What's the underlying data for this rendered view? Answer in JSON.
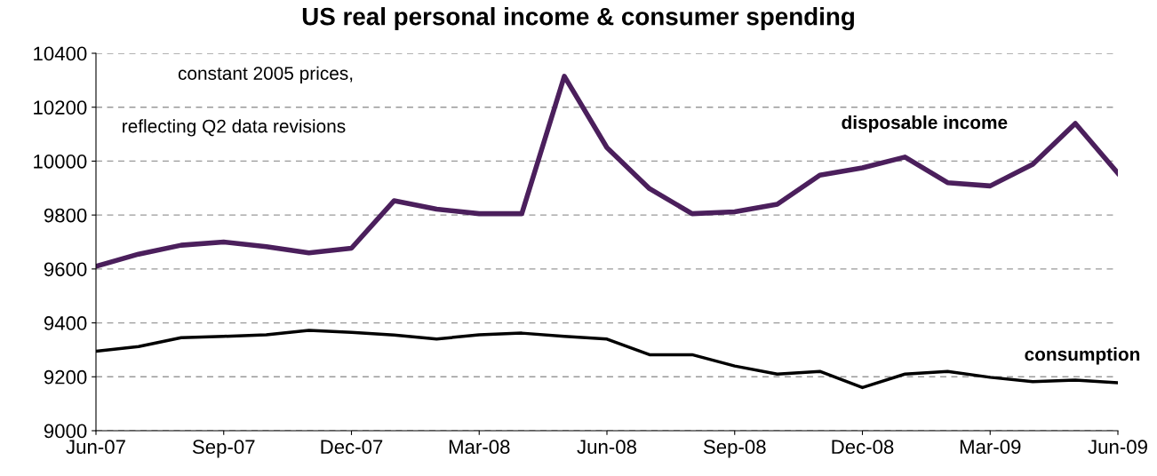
{
  "chart_data": {
    "type": "line",
    "title": "US real personal income & consumer spending",
    "categories": [
      "Jun-07",
      null,
      null,
      "Sep-07",
      null,
      null,
      "Dec-07",
      null,
      null,
      "Mar-08",
      null,
      null,
      "Jun-08",
      null,
      null,
      "Sep-08",
      null,
      null,
      "Dec-08",
      null,
      null,
      "Mar-09",
      null,
      null,
      "Jun-09"
    ],
    "series": [
      {
        "name": "disposable income",
        "color": "#4b1f5c",
        "values": [
          9610,
          9655,
          9688,
          9700,
          9683,
          9660,
          9677,
          9853,
          9822,
          9805,
          9805,
          10315,
          10050,
          9898,
          9805,
          9812,
          9840,
          9948,
          9975,
          10015,
          9920,
          9908,
          9988,
          10140,
          9955
        ]
      },
      {
        "name": "consumption",
        "color": "#000000",
        "values": [
          9295,
          9312,
          9345,
          9350,
          9356,
          9372,
          9365,
          9355,
          9340,
          9356,
          9362,
          9350,
          9340,
          9282,
          9282,
          9240,
          9210,
          9220,
          9160,
          9210,
          9220,
          9198,
          9182,
          9188,
          9178
        ]
      }
    ],
    "ylim": [
      9000,
      10400
    ],
    "yticks": [
      9000,
      9200,
      9400,
      9600,
      9800,
      10000,
      10200,
      10400
    ],
    "grid": "y",
    "legend": false,
    "annotations": [
      "constant 2005 prices,",
      "reflecting Q2 data revisions"
    ]
  }
}
